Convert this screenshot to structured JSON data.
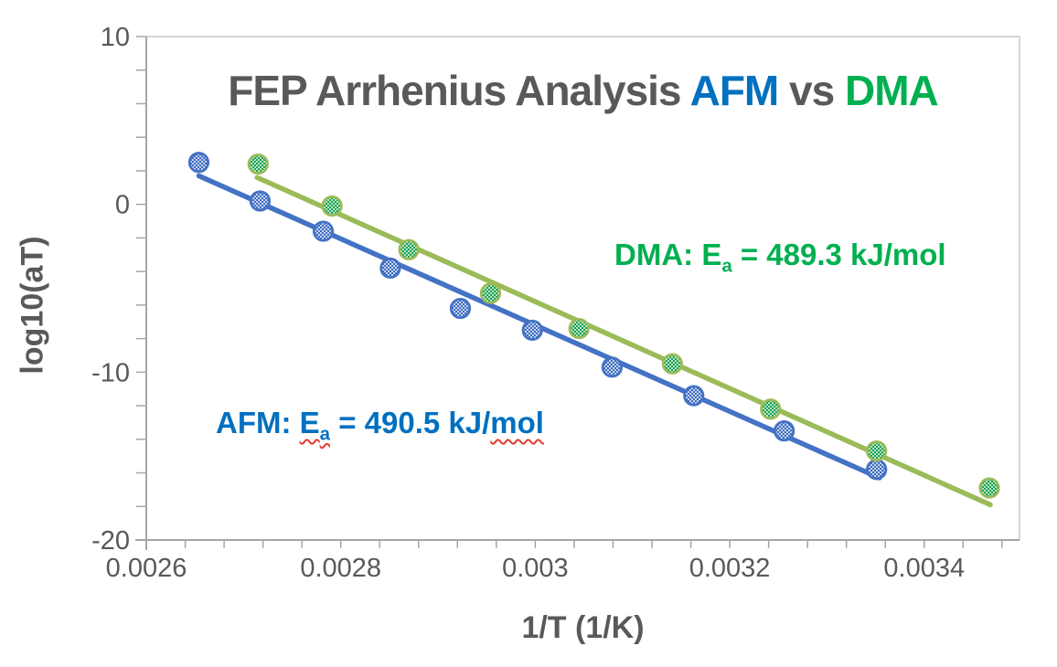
{
  "chart_data": {
    "type": "scatter",
    "title": {
      "segments": [
        {
          "text": "FEP Arrhenius Analysis ",
          "color": "#595959"
        },
        {
          "text": "AFM",
          "color": "#0070C0"
        },
        {
          "text": " vs ",
          "color": "#595959"
        },
        {
          "text": "DMA",
          "color": "#00B050"
        }
      ]
    },
    "xlabel": "1/T (1/K)",
    "ylabel": "log10(aT)",
    "xlim": [
      0.0026,
      0.003498
    ],
    "ylim": [
      -20,
      10
    ],
    "grid": "off",
    "legend": "none",
    "axis_color": "#A6A6A6",
    "border_color": "#C6C6C6",
    "tick_label_color": "#595959",
    "x_major_ticks": {
      "values": [
        0.0026,
        0.0028,
        0.003,
        0.0032,
        0.0034
      ],
      "labels": [
        "0.0026",
        "0.0028",
        "0.003",
        "0.0032",
        "0.0034"
      ]
    },
    "x_minor_tick_step": 4e-05,
    "y_major_ticks": {
      "values": [
        10,
        0,
        -10,
        -20
      ],
      "labels": [
        "10",
        "0",
        "-10",
        "-20"
      ]
    },
    "y_minor_tick_step": 2,
    "series": [
      {
        "name": "AFM",
        "line_color": "#4472C4",
        "marker_fill": "#3D6BBF",
        "marker_rim": "#4472C4",
        "Ea_kJ_mol": 490.5,
        "points": [
          [
            0.002654,
            2.5
          ],
          [
            0.002717,
            0.2
          ],
          [
            0.002782,
            -1.6
          ],
          [
            0.002851,
            -3.8
          ],
          [
            0.002923,
            -6.2
          ],
          [
            0.002997,
            -7.5
          ],
          [
            0.003079,
            -9.7
          ],
          [
            0.003163,
            -11.4
          ],
          [
            0.003256,
            -13.5
          ],
          [
            0.003351,
            -15.8
          ]
        ],
        "trendline": {
          "x1": 0.002654,
          "y1": 1.7,
          "x2": 0.003354,
          "y2": -16.3
        }
      },
      {
        "name": "DMA",
        "line_color": "#9BBB59",
        "marker_fill": "#17A24E",
        "marker_rim": "#9BBB59",
        "Ea_kJ_mol": 489.3,
        "points": [
          [
            0.002715,
            2.4
          ],
          [
            0.002791,
            -0.1
          ],
          [
            0.00287,
            -2.7
          ],
          [
            0.002954,
            -5.3
          ],
          [
            0.003045,
            -7.4
          ],
          [
            0.003141,
            -9.5
          ],
          [
            0.003242,
            -12.2
          ],
          [
            0.003351,
            -14.7
          ],
          [
            0.003467,
            -16.9
          ]
        ],
        "trendline": {
          "x1": 0.002714,
          "y1": 1.6,
          "x2": 0.003468,
          "y2": -17.9
        }
      }
    ],
    "annotations": [
      {
        "id": "afm",
        "color": "#0070C0",
        "parts": [
          {
            "t": "AFM: "
          },
          {
            "t": "E",
            "squiggle": true
          },
          {
            "t": "a",
            "sub": true,
            "squiggle": true
          },
          {
            "t": " = 490.5 kJ/"
          },
          {
            "t": "mol",
            "squiggle": true
          }
        ]
      },
      {
        "id": "dma",
        "color": "#00B050",
        "parts": [
          {
            "t": "DMA: "
          },
          {
            "t": "E"
          },
          {
            "t": "a",
            "sub": true
          },
          {
            "t": " = 489.3 kJ/mol"
          }
        ]
      }
    ]
  }
}
